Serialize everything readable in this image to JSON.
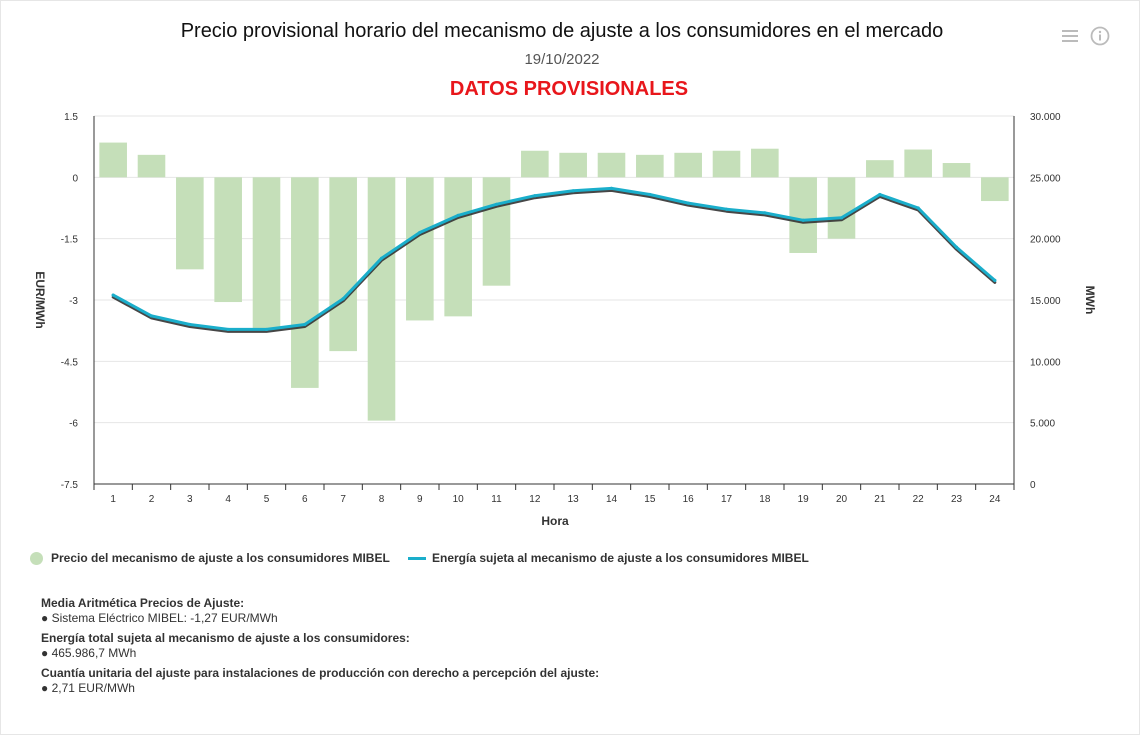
{
  "header": {
    "title": "Precio provisional horario del mecanismo de ajuste a los consumidores en el mercado",
    "date": "19/10/2022",
    "warning": "DATOS PROVISIONALES"
  },
  "toolbar": {
    "menu_icon": "hamburger-menu-icon",
    "info_icon": "info-icon"
  },
  "colors": {
    "bars": "#c5dfb9",
    "line": "#1aaecb",
    "shadow": "#333333",
    "warning": "#e8161b"
  },
  "chart_data": {
    "type": "bar+line",
    "xlabel": "Hora",
    "ylabel_left": "EUR/MWh",
    "ylabel_right": "MWh",
    "categories": [
      "1",
      "2",
      "3",
      "4",
      "5",
      "6",
      "7",
      "8",
      "9",
      "10",
      "11",
      "12",
      "13",
      "14",
      "15",
      "16",
      "17",
      "18",
      "19",
      "20",
      "21",
      "22",
      "23",
      "24"
    ],
    "left_axis": {
      "min": -7.5,
      "max": 1.5,
      "ticks": [
        "1.5",
        "0",
        "-1.5",
        "-3",
        "-4.5",
        "-6",
        "-7.5"
      ],
      "tick_values": [
        1.5,
        0,
        -1.5,
        -3,
        -4.5,
        -6,
        -7.5
      ]
    },
    "right_axis": {
      "min": 0,
      "max": 30000,
      "ticks": [
        "30.000",
        "25.000",
        "20.000",
        "15.000",
        "10.000",
        "5.000",
        "0"
      ],
      "tick_values": [
        30000,
        25000,
        20000,
        15000,
        10000,
        5000,
        0
      ]
    },
    "series": [
      {
        "name": "Precio del mecanismo de ajuste a los consumidores MIBEL",
        "type": "bar",
        "axis": "left",
        "values": [
          0.85,
          0.55,
          -2.25,
          -3.05,
          -3.75,
          -5.15,
          -4.25,
          -5.95,
          -3.5,
          -3.4,
          -2.65,
          0.65,
          0.6,
          0.6,
          0.55,
          0.6,
          0.65,
          0.7,
          -1.85,
          -1.5,
          0.42,
          0.68,
          0.35,
          -0.58
        ]
      },
      {
        "name": "Energía sujeta al mecanismo de ajuste a los consumidores MIBEL",
        "type": "line",
        "axis": "right",
        "values": [
          15400,
          13700,
          13000,
          12600,
          12600,
          13000,
          15100,
          18400,
          20500,
          21900,
          22800,
          23500,
          23900,
          24100,
          23600,
          22900,
          22400,
          22100,
          21500,
          21700,
          23600,
          22500,
          19300,
          16600
        ]
      }
    ]
  },
  "stats": {
    "avg_price_title": "Media Aritmética Precios de Ajuste:",
    "avg_price_value": "● Sistema Eléctrico MIBEL: -1,27 EUR/MWh",
    "total_energy_title": "Energía total sujeta al mecanismo de ajuste a los consumidores:",
    "total_energy_value": "● 465.986,7 MWh",
    "unit_title": "Cuantía unitaria del ajuste para instalaciones de producción con derecho a percepción del ajuste:",
    "unit_value": "● 2,71 EUR/MWh"
  }
}
